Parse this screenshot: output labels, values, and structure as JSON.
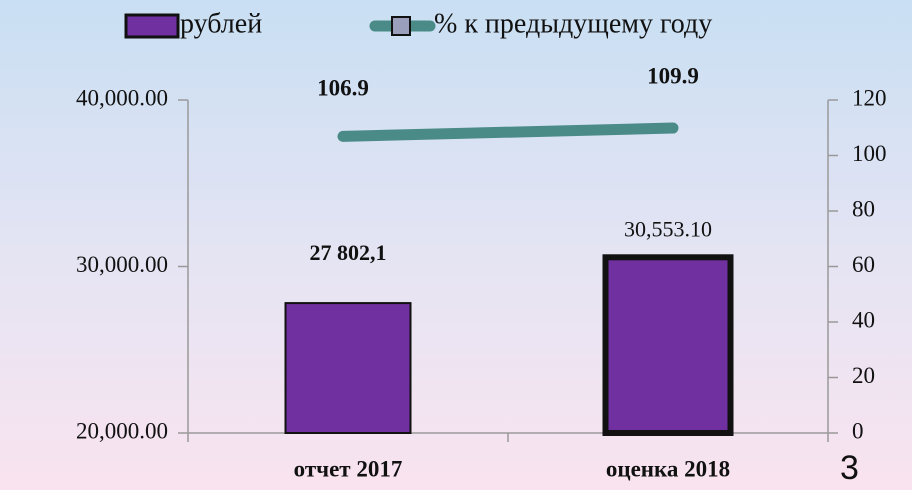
{
  "chart_data": {
    "type": "bar-line",
    "categories": [
      "отчет 2017",
      "оценка 2018"
    ],
    "series": [
      {
        "name": "рублей",
        "type": "bar",
        "color": "#7030a0",
        "values": [
          27802.1,
          30553.1
        ],
        "value_labels": [
          "27 802,1",
          "30,553.10"
        ]
      },
      {
        "name": "% к предыдущему году",
        "type": "line",
        "color": "#4a8a87",
        "axis": "y2",
        "values": [
          106.9,
          109.9
        ]
      }
    ],
    "ylim": [
      20000,
      40000
    ],
    "yticks": [
      {
        "value": 20000,
        "label": "20,000.00"
      },
      {
        "value": 30000,
        "label": "30,000.00"
      },
      {
        "value": 40000,
        "label": "40,000.00"
      }
    ],
    "y2lim": [
      0,
      120
    ],
    "y2ticks": [
      0,
      20,
      40,
      60,
      80,
      100,
      120
    ],
    "legend": "top"
  },
  "slide_number": "3"
}
